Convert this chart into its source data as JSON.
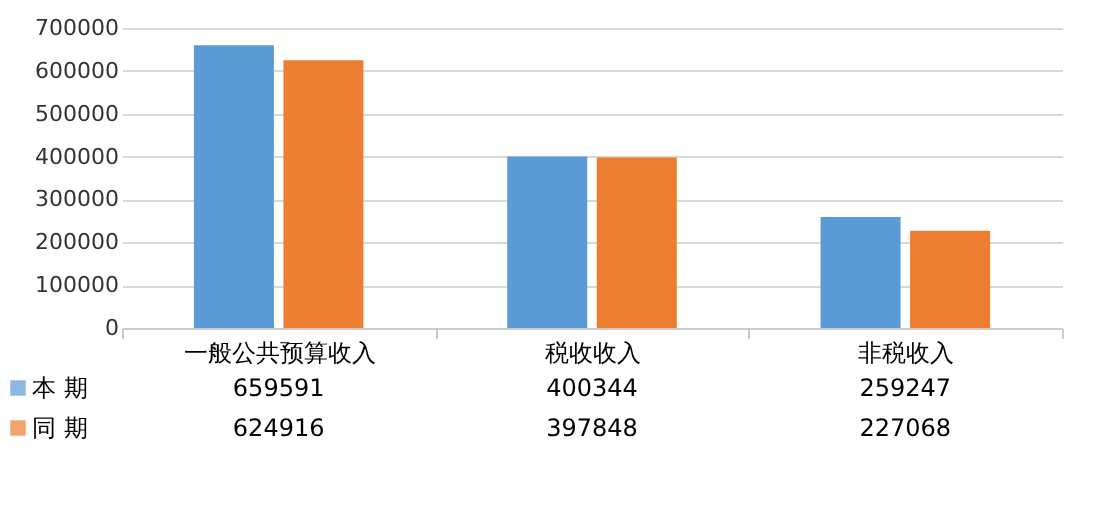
{
  "chart_data": {
    "type": "bar",
    "categories": [
      "一般公共预算收入",
      "税收收入",
      "非税收入"
    ],
    "series": [
      {
        "name": "本 期",
        "color": "#5b9bd5",
        "values": [
          659591,
          400344,
          259247
        ]
      },
      {
        "name": "同 期",
        "color": "#ed7d31",
        "values": [
          624916,
          397848,
          227068
        ]
      }
    ],
    "ylim": [
      0,
      700000
    ],
    "yticks": [
      0,
      100000,
      200000,
      300000,
      400000,
      500000,
      600000,
      700000
    ],
    "grid": "y",
    "legend": "bottom",
    "data_labels": true
  }
}
